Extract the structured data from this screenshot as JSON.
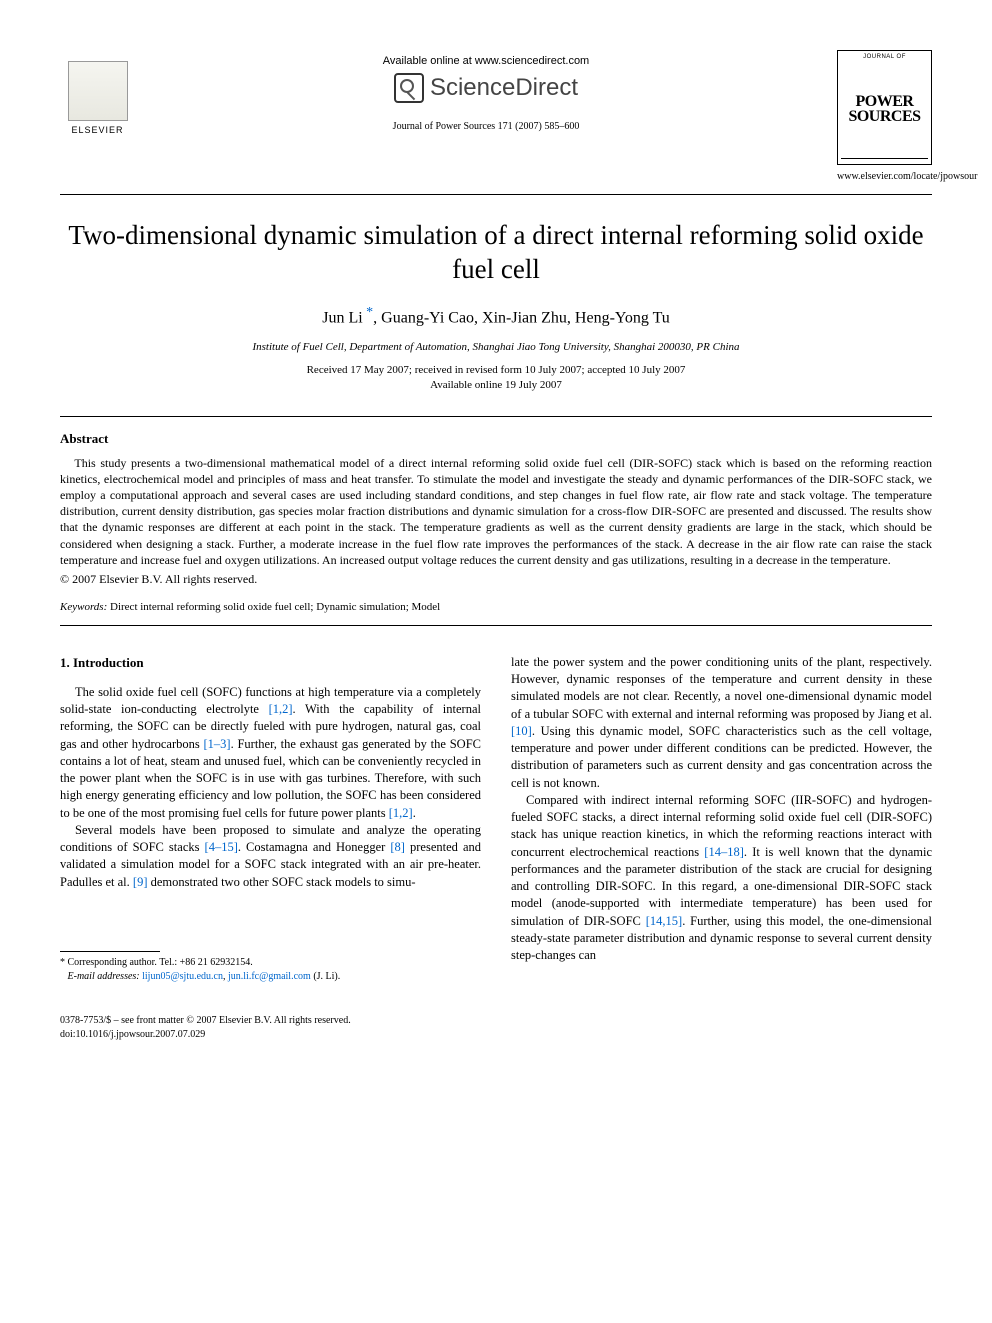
{
  "header": {
    "available_online": "Available online at www.sciencedirect.com",
    "sciencedirect": "ScienceDirect",
    "journal_ref": "Journal of Power Sources 171 (2007) 585–600",
    "elsevier_label": "ELSEVIER",
    "cover_top": "JOURNAL OF",
    "cover_title_1": "POWER",
    "cover_title_2": "SOURCES",
    "journal_url": "www.elsevier.com/locate/jpowsour"
  },
  "article": {
    "title": "Two-dimensional dynamic simulation of a direct internal reforming solid oxide fuel cell",
    "authors": "Jun Li *, Guang-Yi Cao, Xin-Jian Zhu, Heng-Yong Tu",
    "author_main": "Jun Li",
    "author_rest": ", Guang-Yi Cao, Xin-Jian Zhu, Heng-Yong Tu",
    "affiliation": "Institute of Fuel Cell, Department of Automation, Shanghai Jiao Tong University, Shanghai 200030, PR China",
    "received": "Received 17 May 2007; received in revised form 10 July 2007; accepted 10 July 2007",
    "available": "Available online 19 July 2007"
  },
  "abstract": {
    "heading": "Abstract",
    "body": "This study presents a two-dimensional mathematical model of a direct internal reforming solid oxide fuel cell (DIR-SOFC) stack which is based on the reforming reaction kinetics, electrochemical model and principles of mass and heat transfer. To stimulate the model and investigate the steady and dynamic performances of the DIR-SOFC stack, we employ a computational approach and several cases are used including standard conditions, and step changes in fuel flow rate, air flow rate and stack voltage. The temperature distribution, current density distribution, gas species molar fraction distributions and dynamic simulation for a cross-flow DIR-SOFC are presented and discussed. The results show that the dynamic responses are different at each point in the stack. The temperature gradients as well as the current density gradients are large in the stack, which should be considered when designing a stack. Further, a moderate increase in the fuel flow rate improves the performances of the stack. A decrease in the air flow rate can raise the stack temperature and increase fuel and oxygen utilizations. An increased output voltage reduces the current density and gas utilizations, resulting in a decrease in the temperature.",
    "copyright": "© 2007 Elsevier B.V. All rights reserved."
  },
  "keywords": {
    "label": "Keywords:",
    "text": "Direct internal reforming solid oxide fuel cell; Dynamic simulation; Model"
  },
  "body": {
    "section_num": "1.",
    "section_title": "Introduction",
    "col1_p1_a": "The solid oxide fuel cell (SOFC) functions at high temperature via a completely solid-state ion-conducting electrolyte ",
    "col1_p1_ref1": "[1,2]",
    "col1_p1_b": ". With the capability of internal reforming, the SOFC can be directly fueled with pure hydrogen, natural gas, coal gas and other hydrocarbons ",
    "col1_p1_ref2": "[1–3]",
    "col1_p1_c": ". Further, the exhaust gas generated by the SOFC contains a lot of heat, steam and unused fuel, which can be conveniently recycled in the power plant when the SOFC is in use with gas turbines. Therefore, with such high energy generating efficiency and low pollution, the SOFC has been considered to be one of the most promising fuel cells for future power plants ",
    "col1_p1_ref3": "[1,2]",
    "col1_p1_d": ".",
    "col1_p2_a": "Several models have been proposed to simulate and analyze the operating conditions of SOFC stacks ",
    "col1_p2_ref1": "[4–15]",
    "col1_p2_b": ". Costamagna and Honegger ",
    "col1_p2_ref2": "[8]",
    "col1_p2_c": " presented and validated a simulation model for a SOFC stack integrated with an air pre-heater. Padulles et al. ",
    "col1_p2_ref3": "[9]",
    "col1_p2_d": " demonstrated two other SOFC stack models to simu-",
    "col2_p1_a": "late the power system and the power conditioning units of the plant, respectively. However, dynamic responses of the temperature and current density in these simulated models are not clear. Recently, a novel one-dimensional dynamic model of a tubular SOFC with external and internal reforming was proposed by Jiang et al. ",
    "col2_p1_ref1": "[10]",
    "col2_p1_b": ". Using this dynamic model, SOFC characteristics such as the cell voltage, temperature and power under different conditions can be predicted. However, the distribution of parameters such as current density and gas concentration across the cell is not known.",
    "col2_p2_a": "Compared with indirect internal reforming SOFC (IIR-SOFC) and hydrogen-fueled SOFC stacks, a direct internal reforming solid oxide fuel cell (DIR-SOFC) stack has unique reaction kinetics, in which the reforming reactions interact with concurrent electrochemical reactions ",
    "col2_p2_ref1": "[14–18]",
    "col2_p2_b": ". It is well known that the dynamic performances and the parameter distribution of the stack are crucial for designing and controlling DIR-SOFC. In this regard, a one-dimensional DIR-SOFC stack model (anode-supported with intermediate temperature) has been used for simulation of DIR-SOFC ",
    "col2_p2_ref2": "[14,15]",
    "col2_p2_c": ". Further, using this model, the one-dimensional steady-state parameter distribution and dynamic response to several current density step-changes can"
  },
  "footnote": {
    "corr": "* Corresponding author. Tel.: +86 21 62932154.",
    "email_label": "E-mail addresses:",
    "email1": "lijun05@sjtu.edu.cn",
    "email2": "jun.li.fc@gmail.com",
    "email_tail": " (J. Li)."
  },
  "bottom": {
    "issn": "0378-7753/$ – see front matter © 2007 Elsevier B.V. All rights reserved.",
    "doi": "doi:10.1016/j.jpowsour.2007.07.029"
  }
}
